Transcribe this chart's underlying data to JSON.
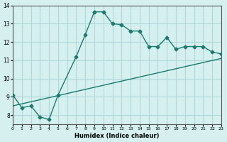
{
  "xlabel": "Humidex (Indice chaleur)",
  "bg_color": "#d6f0f0",
  "line_color": "#1a7a6e",
  "grid_color": "#b0d8d8",
  "line1_x": [
    0,
    1,
    2,
    3,
    4,
    5,
    7,
    8,
    9,
    10,
    11,
    12,
    13,
    14,
    15,
    16,
    17,
    18,
    19,
    20,
    21,
    22,
    23
  ],
  "line1_y": [
    9.1,
    8.4,
    8.5,
    7.9,
    7.75,
    9.1,
    11.2,
    12.4,
    13.65,
    13.65,
    13.0,
    12.95,
    12.6,
    12.6,
    11.75,
    11.75,
    12.25,
    11.6,
    11.75,
    11.75,
    11.75,
    11.45,
    11.35
  ],
  "line2_x": [
    0,
    23
  ],
  "line2_y": [
    8.5,
    11.1
  ],
  "xlim": [
    0,
    23
  ],
  "ylim": [
    7.5,
    14
  ],
  "xticks": [
    0,
    1,
    2,
    3,
    4,
    5,
    6,
    7,
    8,
    9,
    10,
    11,
    12,
    13,
    14,
    15,
    16,
    17,
    18,
    19,
    20,
    21,
    22,
    23
  ],
  "yticks": [
    8,
    9,
    10,
    11,
    12,
    13,
    14
  ]
}
